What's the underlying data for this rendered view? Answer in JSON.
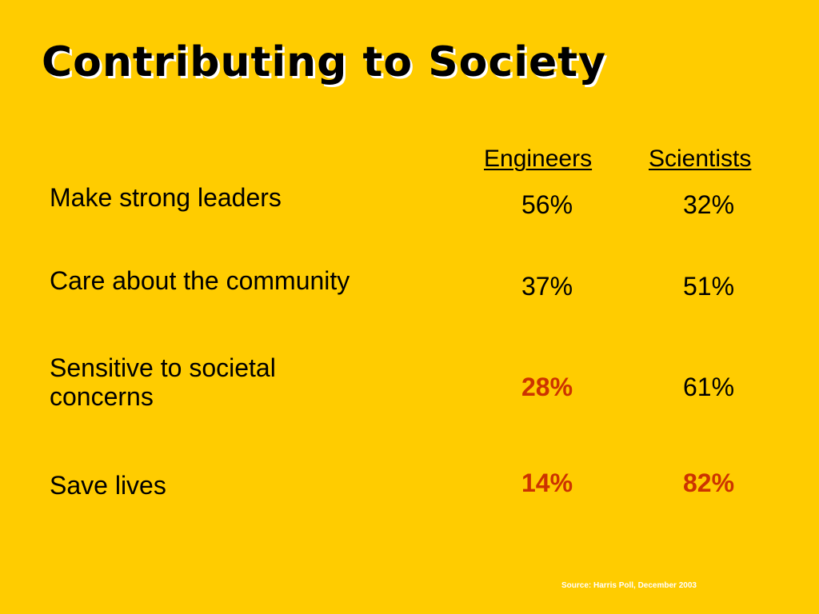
{
  "title": "Contributing to Society",
  "columns": {
    "engineers": "Engineers",
    "scientists": "Scientists"
  },
  "rows": [
    {
      "label": "Make strong leaders",
      "engineers": "56%",
      "scientists": "32%"
    },
    {
      "label": "Care about the community",
      "engineers": "37%",
      "scientists": "51%"
    },
    {
      "label": "Sensitive to societal concerns",
      "engineers": "28%",
      "scientists": "61%"
    },
    {
      "label": "Save lives",
      "engineers": "14%",
      "scientists": "82%"
    }
  ],
  "source": "Source: Harris Poll, December 2003",
  "colors": {
    "background": "#FFCC00",
    "highlight": "#CC3300",
    "text": "#000000"
  }
}
